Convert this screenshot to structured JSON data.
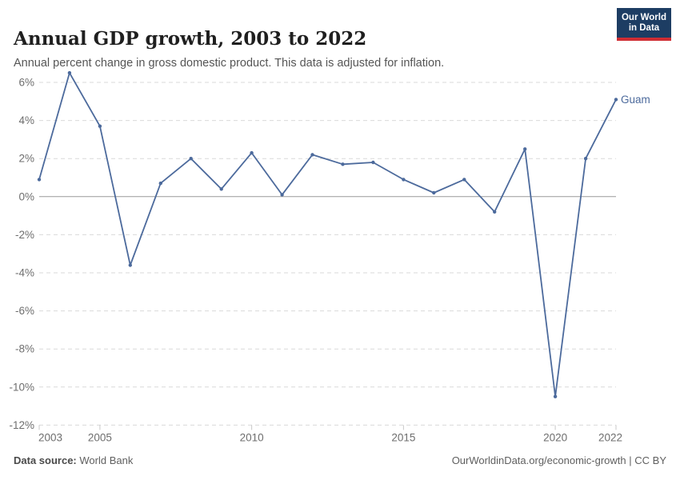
{
  "header": {
    "title": "Annual GDP growth, 2003 to 2022",
    "subtitle": "Annual percent change in gross domestic product. This data is adjusted for inflation.",
    "logo": {
      "line1": "Our World",
      "line2": "in Data"
    }
  },
  "chart_data": {
    "type": "line",
    "title": "Annual GDP growth, 2003 to 2022",
    "subtitle": "Annual percent change in gross domestic product. This data is adjusted for inflation.",
    "x": [
      2003,
      2004,
      2005,
      2006,
      2007,
      2008,
      2009,
      2010,
      2011,
      2012,
      2013,
      2014,
      2015,
      2016,
      2017,
      2018,
      2019,
      2020,
      2021,
      2022
    ],
    "series": [
      {
        "name": "Guam",
        "values": [
          0.9,
          6.5,
          3.7,
          -3.6,
          0.7,
          2.0,
          0.4,
          2.3,
          0.1,
          2.2,
          1.7,
          1.8,
          0.9,
          0.2,
          0.9,
          -0.8,
          2.5,
          -10.5,
          2.0,
          5.1
        ]
      }
    ],
    "xlabel": "",
    "ylabel": "",
    "x_ticks": [
      2003,
      2005,
      2010,
      2015,
      2020,
      2022
    ],
    "y_ticks": [
      6,
      4,
      2,
      0,
      -2,
      -4,
      -6,
      -8,
      -10,
      -12
    ],
    "y_tick_suffix": "%",
    "ylim": [
      -12,
      6.6
    ],
    "xlim": [
      2003,
      2022
    ],
    "grid": true,
    "legend_position": "end-of-line-label"
  },
  "footer": {
    "source_label": "Data source:",
    "source_value": "World Bank",
    "link": "OurWorldinData.org/economic-growth",
    "separator": " | ",
    "license": "CC BY"
  },
  "colors": {
    "line": "#4C6A9C",
    "entity_label": "#4C6A9C",
    "grid": "#d9d9d9",
    "zero_line": "#999999",
    "tick_mark": "#c8c8c8",
    "tick_text": "#6e6e6e",
    "logo_navy": "#1d3d63",
    "logo_red": "#cf2d33"
  }
}
